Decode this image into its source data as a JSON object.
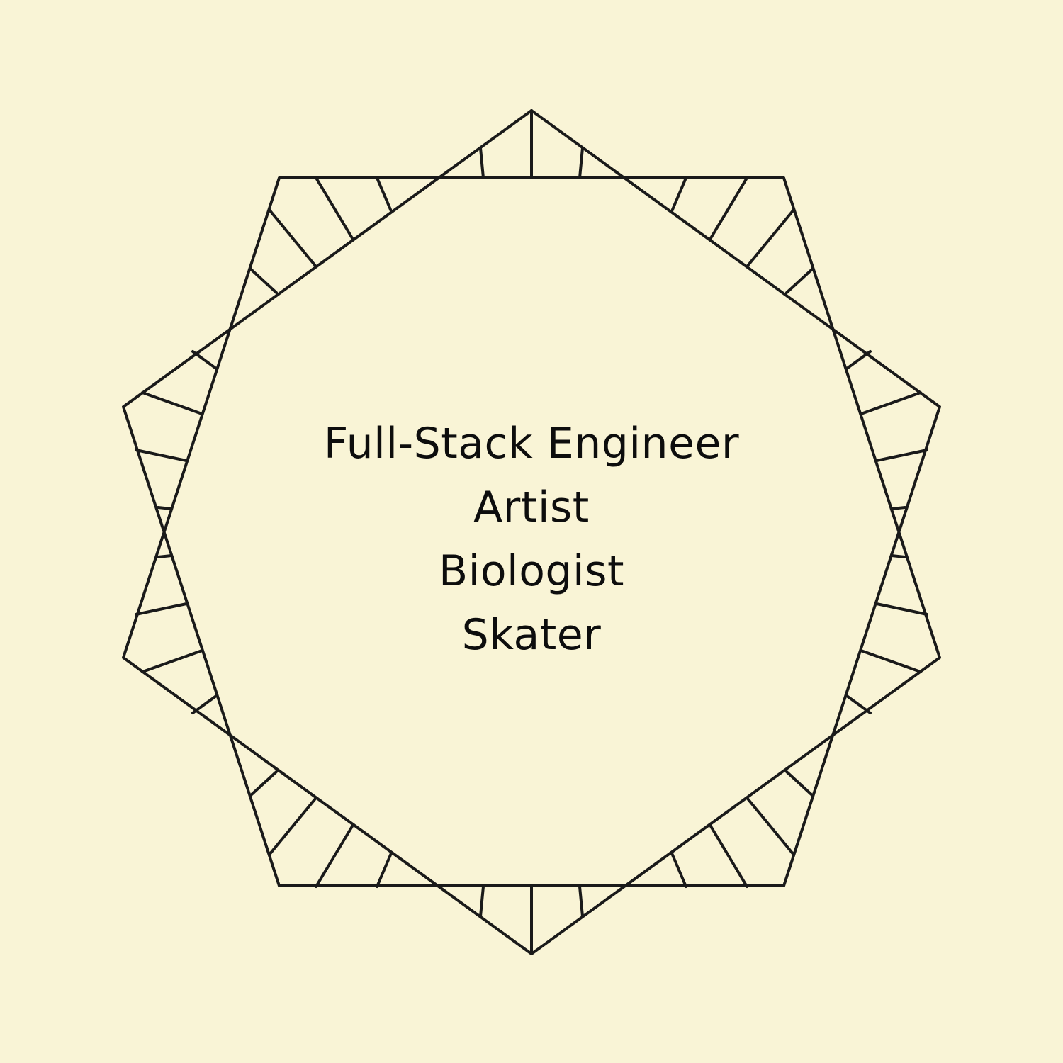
{
  "colors": {
    "background": "#f9f4d6",
    "ink": "#1a1a1a",
    "text": "#0d0d0d"
  },
  "ornament": {
    "name": "star-frame",
    "shape": "two overlapping pentagons forming a decagram with ruled bands"
  },
  "roles": [
    {
      "label": "Full-Stack Engineer"
    },
    {
      "label": "Artist"
    },
    {
      "label": "Biologist"
    },
    {
      "label": "Skater"
    }
  ]
}
